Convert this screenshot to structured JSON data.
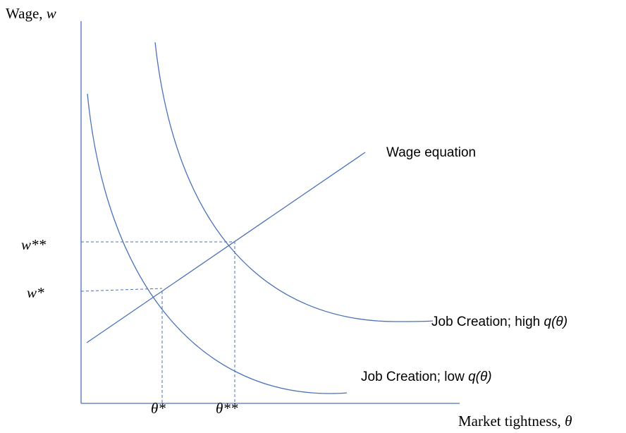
{
  "axes": {
    "y_label": {
      "text": "Wage, ",
      "var": "w"
    },
    "x_label": {
      "text": "Market tightness, ",
      "var": "θ"
    }
  },
  "curves": {
    "wage_equation": "Wage equation",
    "job_creation_high": {
      "text": "Job Creation;  high ",
      "var": "q(θ)"
    },
    "job_creation_low": {
      "text": "Job Creation; low ",
      "var": "q(θ)"
    }
  },
  "equilibria": {
    "w_high": "w**",
    "w_low": "w*",
    "theta_low": "θ*",
    "theta_high": "θ**"
  }
}
